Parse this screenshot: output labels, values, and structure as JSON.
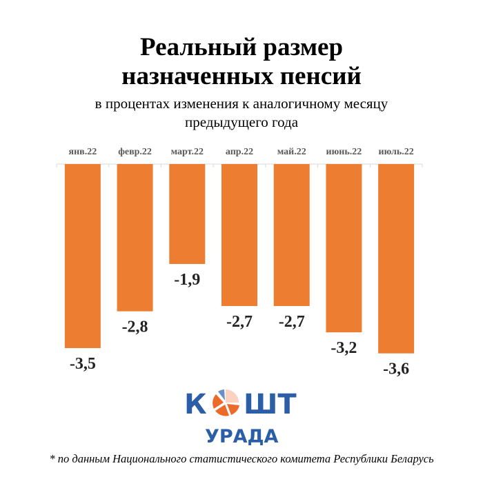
{
  "chart_data": {
    "type": "bar",
    "title": "Реальный размер назначенных пенсий",
    "title_lines": [
      "Реальный размер",
      "назначенных пенсий"
    ],
    "subtitle_lines": [
      "в процентах изменения к аналогичному месяцу",
      "предыдущего года"
    ],
    "categories": [
      "янв.22",
      "февр.22",
      "март.22",
      "апр.22",
      "май.22",
      "июнь.22",
      "июль.22"
    ],
    "values": [
      -3.5,
      -2.8,
      -1.9,
      -2.7,
      -2.7,
      -3.2,
      -3.6
    ],
    "data_labels": [
      "-3,5",
      "-2,8",
      "-1,9",
      "-2,7",
      "-2,7",
      "-3,2",
      "-3,6"
    ],
    "xlabel": "",
    "ylabel": "",
    "ylim": [
      -3.6,
      0
    ],
    "grid": false,
    "bar_color": "#ED7D31",
    "category_axis_position": "top"
  },
  "logo": {
    "text_top": "КОШТ",
    "text_bottom": "УРАДА",
    "blue": "#2B5EA7",
    "orange": "#ED6B2A"
  },
  "footnote": "* по данным Национального статистического комитета Республики Беларусь"
}
